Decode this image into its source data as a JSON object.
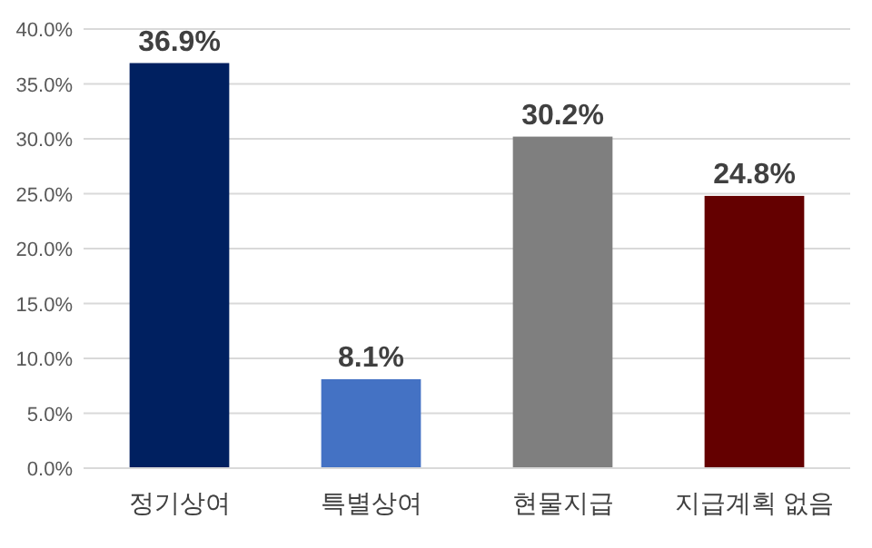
{
  "chart_data": {
    "type": "bar",
    "categories": [
      "정기상여",
      "특별상여",
      "현물지급",
      "지급계획 없음"
    ],
    "values": [
      36.9,
      8.1,
      30.2,
      24.8
    ],
    "colors": [
      "#002060",
      "#4472c4",
      "#7f7f7f",
      "#640000"
    ],
    "value_labels": [
      "36.9%",
      "8.1%",
      "30.2%",
      "24.8%"
    ],
    "ylim": [
      0,
      40
    ],
    "yticks": [
      {
        "value": 0,
        "label": "0.0%"
      },
      {
        "value": 5,
        "label": "5.0%"
      },
      {
        "value": 10,
        "label": "10.0%"
      },
      {
        "value": 15,
        "label": "15.0%"
      },
      {
        "value": 20,
        "label": "20.0%"
      },
      {
        "value": 25,
        "label": "25.0%"
      },
      {
        "value": 30,
        "label": "30.0%"
      },
      {
        "value": 35,
        "label": "35.0%"
      },
      {
        "value": 40,
        "label": "40.0%"
      }
    ],
    "grid": "y"
  }
}
